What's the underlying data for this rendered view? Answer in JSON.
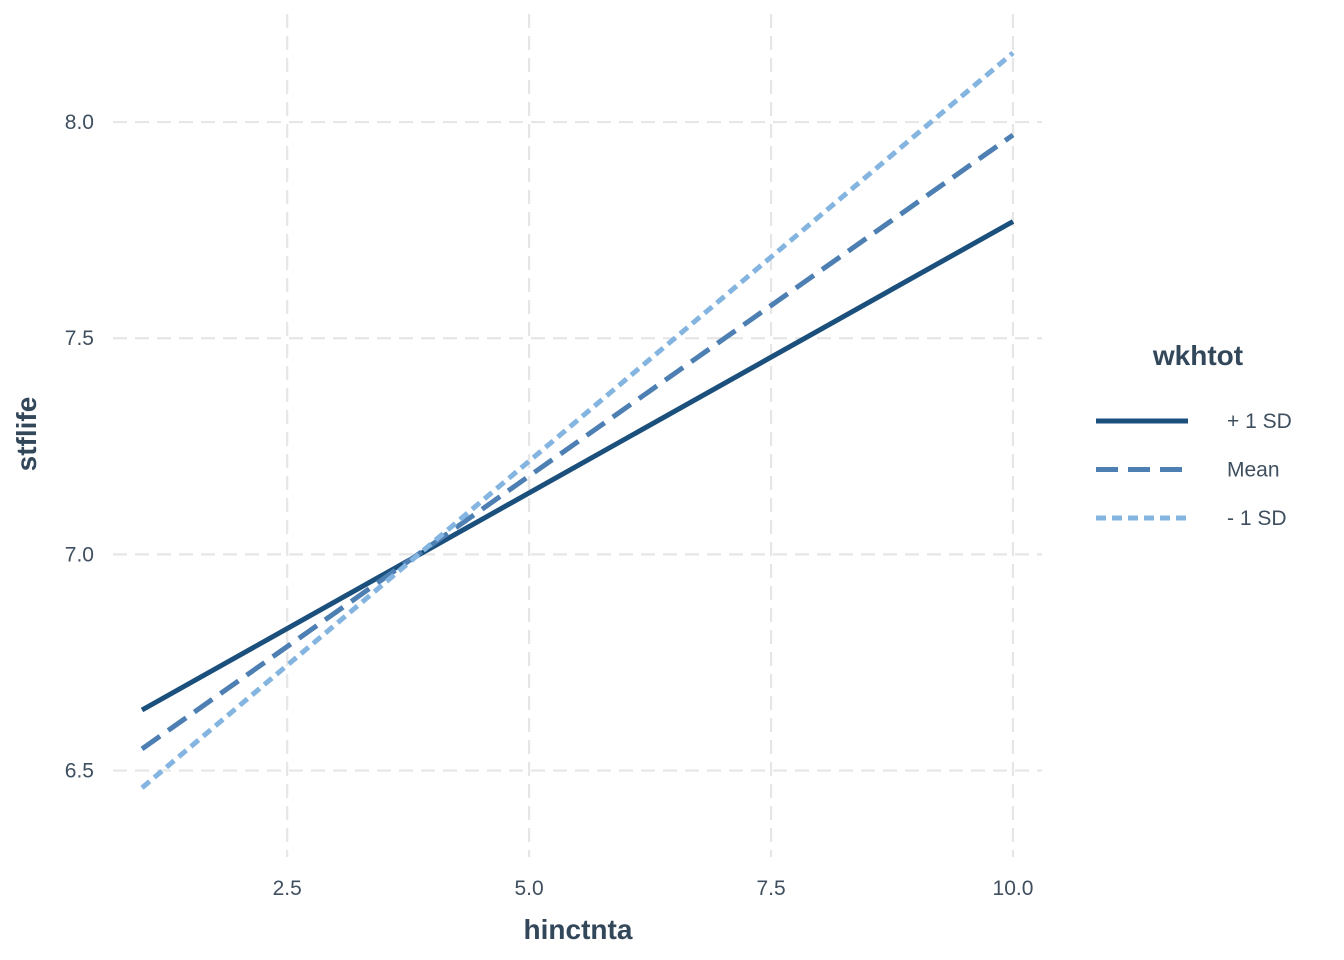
{
  "chart_data": {
    "type": "line",
    "title": "",
    "xlabel": "hinctnta",
    "ylabel": "stflife",
    "xlim": [
      0.7,
      10.3
    ],
    "ylim": [
      6.3,
      8.25
    ],
    "xticks": [
      2.5,
      5.0,
      7.5,
      10.0
    ],
    "xtick_labels": [
      "2.5",
      "5.0",
      "7.5",
      "10.0"
    ],
    "yticks": [
      6.5,
      7.0,
      7.5,
      8.0
    ],
    "ytick_labels": [
      "6.5",
      "7.0",
      "7.5",
      "8.0"
    ],
    "grid": true,
    "legend": {
      "title": "wkhtot",
      "position": "right"
    },
    "series": [
      {
        "name": "+ 1 SD",
        "x": [
          1,
          10
        ],
        "y": [
          6.64,
          7.77
        ],
        "color": "#1b4f7c",
        "dash": "solid"
      },
      {
        "name": "Mean",
        "x": [
          1,
          10
        ],
        "y": [
          6.55,
          7.97
        ],
        "color": "#4d7fb3",
        "dash": "dashed"
      },
      {
        "name": "- 1 SD",
        "x": [
          1,
          10
        ],
        "y": [
          6.46,
          8.16
        ],
        "color": "#84b4e0",
        "dash": "dotted"
      }
    ]
  }
}
